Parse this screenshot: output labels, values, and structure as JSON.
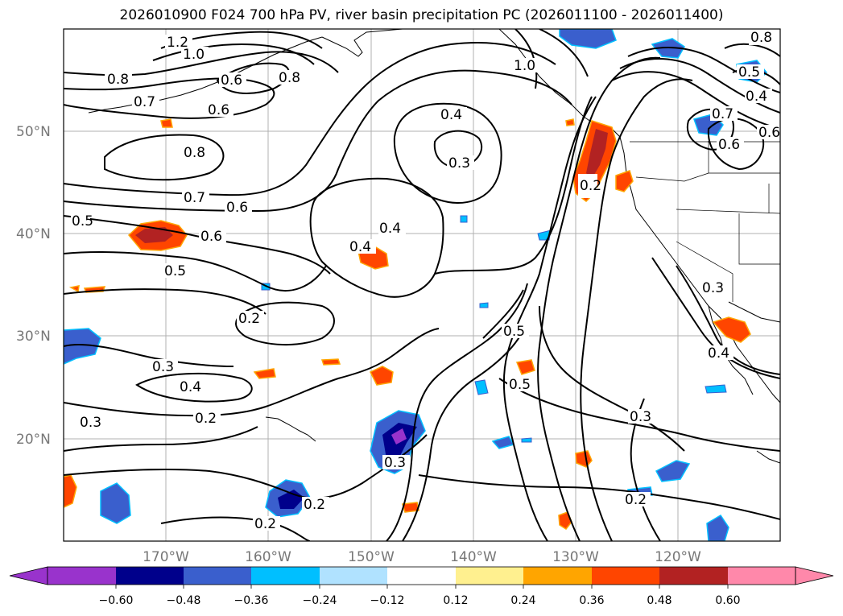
{
  "title": "2026010900 F024 700 hPa PV, river basin precipitation PC (2026011100 - 2026011400)",
  "lat_labels": [
    "50°N",
    "40°N",
    "30°N",
    "20°N"
  ],
  "lon_labels": [
    "170°W",
    "160°W",
    "150°W",
    "140°W",
    "130°W",
    "120°W"
  ],
  "contour_labels": [
    "1.2",
    "1.0",
    "0.8",
    "0.7",
    "0.6",
    "0.8",
    "0.6",
    "0.8",
    "0.7",
    "0.6",
    "0.5",
    "0.6",
    "0.5",
    "0.4",
    "0.4",
    "0.3",
    "0.4",
    "0.2",
    "0.3",
    "0.4",
    "0.2",
    "0.3",
    "0.2",
    "0.2",
    "0.3",
    "0.5",
    "0.5",
    "0.3",
    "0.2",
    "0.2",
    "0.3",
    "0.4",
    "0.5",
    "0.4",
    "0.7",
    "0.6",
    "0.6",
    "0.8",
    "1.0"
  ],
  "colorbar": {
    "ticks": [
      "−0.60",
      "−0.48",
      "−0.36",
      "−0.24",
      "−0.12",
      "0.12",
      "0.24",
      "0.36",
      "0.48",
      "0.60"
    ],
    "colors": {
      "under": "#9933cc",
      "c1": "#00008b",
      "c2": "#3a5fcd",
      "c3": "#00bfff",
      "c4": "#b0e2ff",
      "c5": "#ffffff",
      "c6": "#fff08f",
      "c7": "#ffa500",
      "c8": "#ff4500",
      "c9": "#b22222",
      "over": "#ff88aa"
    }
  }
}
